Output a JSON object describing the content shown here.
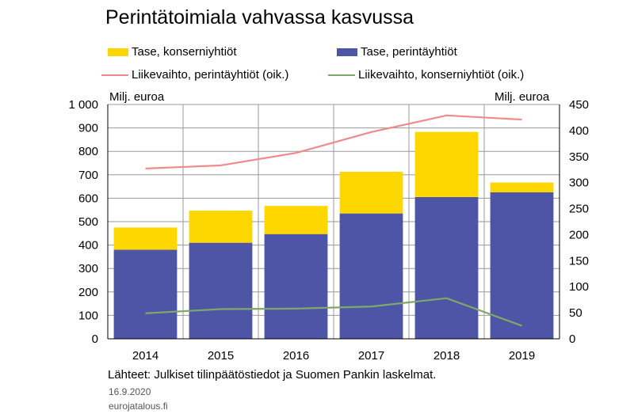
{
  "chart_data": {
    "type": "bar",
    "title": "Perintätoimiala vahvassa kasvussa",
    "categories": [
      "2014",
      "2015",
      "2016",
      "2017",
      "2018",
      "2019"
    ],
    "stacked": true,
    "series": [
      {
        "name": "Tase, perintäyhtiöt",
        "type": "bar",
        "axis": "left",
        "color": "#4f55a6",
        "values": [
          380,
          410,
          447,
          535,
          605,
          625
        ]
      },
      {
        "name": "Tase, konserniyhtiöt",
        "type": "bar",
        "axis": "left",
        "color": "#ffd700",
        "values": [
          95,
          137,
          120,
          178,
          278,
          42
        ]
      },
      {
        "name": "Liikevaihto, perintäyhtiöt (oik.)",
        "type": "line",
        "axis": "right",
        "color": "#f08a8a",
        "values": [
          327,
          333,
          357,
          397,
          429,
          421
        ]
      },
      {
        "name": "Liikevaihto, konserniyhtiöt (oik.)",
        "type": "line",
        "axis": "right",
        "color": "#7ea86a",
        "values": [
          49,
          57,
          58,
          62,
          78,
          25
        ]
      }
    ],
    "left_axis": {
      "label": "Milj. euroa",
      "ylim": [
        0,
        1000
      ],
      "ticks": [
        "0",
        "100",
        "200",
        "300",
        "400",
        "500",
        "600",
        "700",
        "800",
        "900",
        "1 000"
      ]
    },
    "right_axis": {
      "label": "Milj. euroa",
      "ylim": [
        0,
        450
      ],
      "ticks": [
        "0",
        "50",
        "100",
        "150",
        "200",
        "250",
        "300",
        "350",
        "400",
        "450"
      ]
    },
    "grid": true,
    "legend_position": "top"
  },
  "legend": {
    "tase_konserni": "Tase, konserniyhtiöt",
    "tase_perinta": "Tase, perintäyhtiöt",
    "lv_perinta": "Liikevaihto, perintäyhtiöt (oik.)",
    "lv_konserni": "Liikevaihto, konserniyhtiöt (oik.)"
  },
  "footer": {
    "source": "Lähteet: Julkiset tilinpäätöstiedot ja Suomen Pankin laskelmat.",
    "date": "16.9.2020",
    "site": "eurojatalous.fi"
  }
}
